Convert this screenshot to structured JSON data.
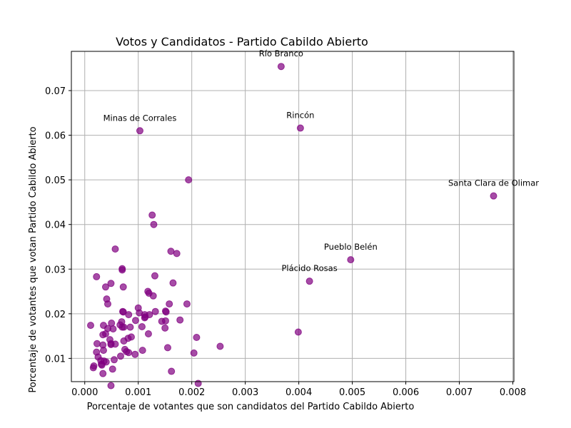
{
  "chart_data": {
    "type": "scatter",
    "title": "Votos y Candidatos - Partido Cabildo Abierto",
    "xlabel": "Porcentaje de votantes que son candidatos del Partido Cabildo Abierto",
    "ylabel": "Porcentaje de votantes que votan Partido Cabildo Abierto",
    "xlim": [
      -0.00025,
      0.00802
    ],
    "ylim": [
      0.00479,
      0.07879
    ],
    "xticks": [
      0.0,
      0.001,
      0.002,
      0.003,
      0.004,
      0.005,
      0.006,
      0.007,
      0.008
    ],
    "xtick_labels": [
      "0.000",
      "0.001",
      "0.002",
      "0.003",
      "0.004",
      "0.005",
      "0.006",
      "0.007",
      "0.008"
    ],
    "yticks": [
      0.01,
      0.02,
      0.03,
      0.04,
      0.05,
      0.06,
      0.07
    ],
    "ytick_labels": [
      "0.01",
      "0.02",
      "0.03",
      "0.04",
      "0.05",
      "0.06",
      "0.07"
    ],
    "grid": true,
    "color": "#800080",
    "points": [
      [
        0.00764,
        0.0464
      ],
      [
        0.00367,
        0.0754
      ],
      [
        0.00403,
        0.0616
      ],
      [
        0.00103,
        0.061
      ],
      [
        0.00497,
        0.0321
      ],
      [
        0.0042,
        0.0273
      ],
      [
        0.00399,
        0.0159
      ],
      [
        0.00194,
        0.05
      ],
      [
        0.00126,
        0.0421
      ],
      [
        0.00129,
        0.04
      ],
      [
        0.00057,
        0.0345
      ],
      [
        0.00161,
        0.034
      ],
      [
        0.00172,
        0.0335
      ],
      [
        0.0007,
        0.0301
      ],
      [
        0.0007,
        0.0298
      ],
      [
        0.00022,
        0.0283
      ],
      [
        0.00131,
        0.0285
      ],
      [
        0.00049,
        0.0268
      ],
      [
        0.00072,
        0.026
      ],
      [
        0.00039,
        0.026
      ],
      [
        0.00165,
        0.0269
      ],
      [
        0.00118,
        0.025
      ],
      [
        0.0012,
        0.0246
      ],
      [
        0.00128,
        0.024
      ],
      [
        0.00041,
        0.0233
      ],
      [
        0.00043,
        0.0222
      ],
      [
        0.00158,
        0.0222
      ],
      [
        0.00191,
        0.0222
      ],
      [
        0.001,
        0.0213
      ],
      [
        0.00071,
        0.0205
      ],
      [
        0.00072,
        0.0204
      ],
      [
        0.00132,
        0.0205
      ],
      [
        0.00151,
        0.0206
      ],
      [
        0.00152,
        0.0204
      ],
      [
        0.00082,
        0.0198
      ],
      [
        0.00102,
        0.0202
      ],
      [
        0.00112,
        0.0198
      ],
      [
        0.00121,
        0.0198
      ],
      [
        0.00113,
        0.0193
      ],
      [
        0.00112,
        0.0191
      ],
      [
        0.00069,
        0.0182
      ],
      [
        0.00095,
        0.0185
      ],
      [
        0.00144,
        0.0183
      ],
      [
        0.00151,
        0.0184
      ],
      [
        0.00178,
        0.0186
      ],
      [
        0.0005,
        0.0179
      ],
      [
        0.00066,
        0.0175
      ],
      [
        0.00011,
        0.0174
      ],
      [
        0.00035,
        0.0174
      ],
      [
        0.0007,
        0.017
      ],
      [
        0.00073,
        0.017
      ],
      [
        0.00085,
        0.017
      ],
      [
        0.00107,
        0.0171
      ],
      [
        0.0015,
        0.0168
      ],
      [
        0.00043,
        0.0167
      ],
      [
        0.00053,
        0.0166
      ],
      [
        0.00034,
        0.0153
      ],
      [
        0.00039,
        0.0155
      ],
      [
        0.00119,
        0.0155
      ],
      [
        0.00087,
        0.0148
      ],
      [
        0.00081,
        0.0145
      ],
      [
        0.00209,
        0.0147
      ],
      [
        0.00047,
        0.0142
      ],
      [
        0.00073,
        0.0139
      ],
      [
        0.00049,
        0.0133
      ],
      [
        0.00023,
        0.0133
      ],
      [
        0.00034,
        0.013
      ],
      [
        0.00049,
        0.0131
      ],
      [
        0.00057,
        0.0132
      ],
      [
        0.00155,
        0.0124
      ],
      [
        0.00253,
        0.0127
      ],
      [
        0.00075,
        0.012
      ],
      [
        0.00078,
        0.0115
      ],
      [
        0.00035,
        0.0118
      ],
      [
        0.00022,
        0.0114
      ],
      [
        0.00082,
        0.0113
      ],
      [
        0.00108,
        0.0118
      ],
      [
        0.00094,
        0.0109
      ],
      [
        0.00204,
        0.0112
      ],
      [
        0.00025,
        0.0103
      ],
      [
        0.00067,
        0.0105
      ],
      [
        0.0003,
        0.0095
      ],
      [
        0.00036,
        0.0094
      ],
      [
        0.0004,
        0.0092
      ],
      [
        0.00055,
        0.0097
      ],
      [
        0.00031,
        0.0087
      ],
      [
        0.00017,
        0.0083
      ],
      [
        0.00032,
        0.0085
      ],
      [
        0.00016,
        0.0079
      ],
      [
        0.00052,
        0.0076
      ],
      [
        0.00162,
        0.0071
      ],
      [
        0.00034,
        0.0066
      ],
      [
        0.00212,
        0.0044
      ],
      [
        0.00049,
        0.0039
      ]
    ],
    "annotations": [
      {
        "text": "Río Branco",
        "x": 0.00367,
        "y": 0.0754
      },
      {
        "text": "Rincón",
        "x": 0.00403,
        "y": 0.0616
      },
      {
        "text": "Minas de Corrales",
        "x": 0.00103,
        "y": 0.061
      },
      {
        "text": "Santa Clara de Olimar",
        "x": 0.00764,
        "y": 0.0464
      },
      {
        "text": "Pueblo Belén",
        "x": 0.00497,
        "y": 0.0321
      },
      {
        "text": "Plácido Rosas",
        "x": 0.0042,
        "y": 0.0273
      }
    ]
  }
}
